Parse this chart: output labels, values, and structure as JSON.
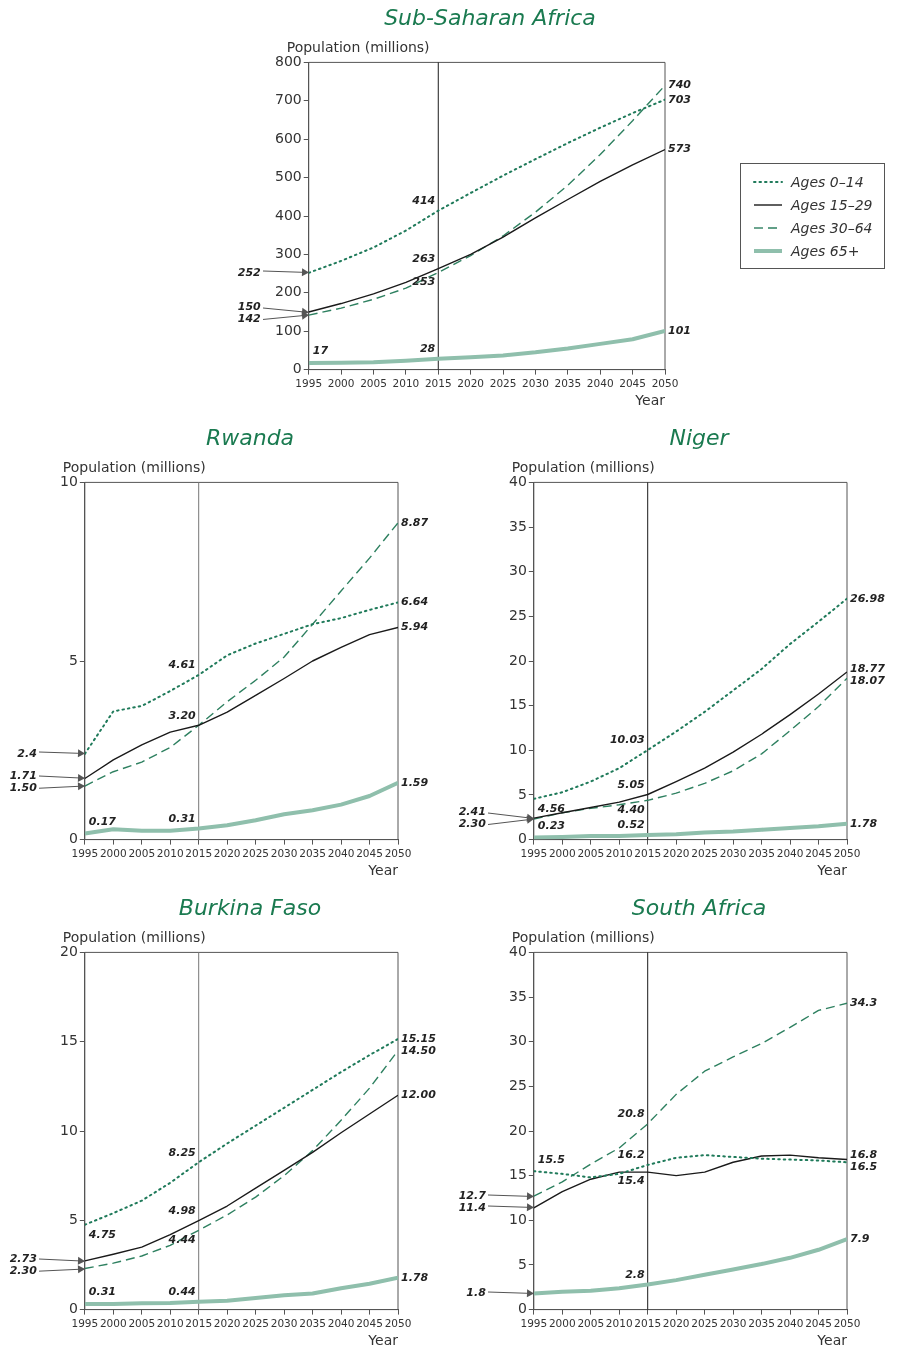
{
  "chart_data": [
    {
      "type": "line",
      "title": "Sub-Saharan Africa",
      "xlabel": "Year",
      "ylabel": "Population (millions)",
      "x": [
        1995,
        2000,
        2005,
        2010,
        2015,
        2020,
        2025,
        2030,
        2035,
        2040,
        2045,
        2050
      ],
      "xlim": [
        1995,
        2050
      ],
      "xticks": [
        1995,
        2000,
        2005,
        2010,
        2015,
        2020,
        2025,
        2030,
        2035,
        2040,
        2045,
        2050
      ],
      "ylim": [
        0,
        800
      ],
      "yticks": [
        0,
        100,
        200,
        300,
        400,
        500,
        600,
        700,
        800
      ],
      "legend": "right",
      "grid": false,
      "series": [
        {
          "name": "Ages 0–14",
          "color": "#1f7a5a",
          "line_style": "dotted",
          "values": [
            252,
            283,
            318,
            362,
            414,
            460,
            505,
            548,
            590,
            630,
            668,
            703
          ]
        },
        {
          "name": "Ages 15–29",
          "color": "#1a1a1a",
          "line_style": "solid",
          "values": [
            150,
            172,
            197,
            227,
            263,
            300,
            345,
            395,
            443,
            490,
            533,
            573
          ]
        },
        {
          "name": "Ages 30–64",
          "color": "#2e8060",
          "line_style": "dashed",
          "values": [
            142,
            160,
            183,
            212,
            253,
            297,
            348,
            410,
            480,
            560,
            648,
            740
          ]
        },
        {
          "name": "Ages 65+",
          "color": "#8fbfac",
          "line_style": "solid",
          "values": [
            17,
            18,
            19,
            23,
            28,
            32,
            37,
            45,
            55,
            67,
            79,
            101
          ]
        }
      ],
      "ref_lines": [
        {
          "axis": "x",
          "value": 2015,
          "color": "#1a1a1a"
        }
      ],
      "annotations": [
        {
          "text": "252",
          "x": 1995,
          "y": 252
        },
        {
          "text": "150",
          "x": 1995,
          "y": 150
        },
        {
          "text": "142",
          "x": 1995,
          "y": 142
        },
        {
          "text": "17",
          "x": 1995,
          "y": 17
        },
        {
          "text": "414",
          "x": 2015,
          "y": 414
        },
        {
          "text": "263",
          "x": 2015,
          "y": 263
        },
        {
          "text": "253",
          "x": 2015,
          "y": 253
        },
        {
          "text": "28",
          "x": 2015,
          "y": 28
        },
        {
          "text": "740",
          "x": 2050,
          "y": 740
        },
        {
          "text": "703",
          "x": 2050,
          "y": 703
        },
        {
          "text": "573",
          "x": 2050,
          "y": 573
        },
        {
          "text": "101",
          "x": 2050,
          "y": 101
        }
      ]
    },
    {
      "type": "line",
      "title": "Rwanda",
      "xlabel": "Year",
      "ylabel": "Population (millions)",
      "x": [
        1995,
        2000,
        2005,
        2010,
        2015,
        2020,
        2025,
        2030,
        2035,
        2040,
        2045,
        2050
      ],
      "xlim": [
        1995,
        2050
      ],
      "xticks": [
        1995,
        2000,
        2005,
        2010,
        2015,
        2020,
        2025,
        2030,
        2035,
        2040,
        2045,
        2050
      ],
      "ylim": [
        0,
        10
      ],
      "yticks": [
        0,
        5,
        10
      ],
      "grid": false,
      "series": [
        {
          "color": "#1f7a5a",
          "line_style": "dotted",
          "values": [
            2.4,
            3.59,
            3.74,
            4.16,
            4.61,
            5.16,
            5.49,
            5.76,
            6.03,
            6.2,
            6.43,
            6.64
          ]
        },
        {
          "color": "#1a1a1a",
          "line_style": "solid",
          "values": [
            1.71,
            2.23,
            2.65,
            3.01,
            3.2,
            3.57,
            4.04,
            4.51,
            5.0,
            5.38,
            5.74,
            5.94
          ]
        },
        {
          "color": "#2e8060",
          "line_style": "dashed",
          "values": [
            1.5,
            1.9,
            2.17,
            2.58,
            3.2,
            3.86,
            4.46,
            5.11,
            6.03,
            6.96,
            7.88,
            8.87
          ]
        },
        {
          "color": "#8fbfac",
          "line_style": "solid",
          "values": [
            0.17,
            0.29,
            0.25,
            0.25,
            0.31,
            0.4,
            0.54,
            0.71,
            0.82,
            0.98,
            1.22,
            1.59
          ]
        }
      ],
      "ref_lines": [
        {
          "axis": "x",
          "value": 2015,
          "color": "#777777"
        }
      ],
      "annotations": [
        {
          "text": "2.4",
          "x": 1995,
          "y": 2.4
        },
        {
          "text": "1.71",
          "x": 1995,
          "y": 1.71
        },
        {
          "text": "1.50",
          "x": 1995,
          "y": 1.5
        },
        {
          "text": "0.17",
          "x": 1995,
          "y": 0.17
        },
        {
          "text": "4.61",
          "x": 2015,
          "y": 4.61
        },
        {
          "text": "3.20",
          "x": 2015,
          "y": 3.2
        },
        {
          "text": "0.31",
          "x": 2015,
          "y": 0.31
        },
        {
          "text": "8.87",
          "x": 2050,
          "y": 8.87
        },
        {
          "text": "6.64",
          "x": 2050,
          "y": 6.64
        },
        {
          "text": "5.94",
          "x": 2050,
          "y": 5.94
        },
        {
          "text": "1.59",
          "x": 2050,
          "y": 1.59
        }
      ]
    },
    {
      "type": "line",
      "title": "Niger",
      "xlabel": "Year",
      "ylabel": "Population (millions)",
      "x": [
        1995,
        2000,
        2005,
        2010,
        2015,
        2020,
        2025,
        2030,
        2035,
        2040,
        2045,
        2050
      ],
      "xlim": [
        1995,
        2050
      ],
      "xticks": [
        1995,
        2000,
        2005,
        2010,
        2015,
        2020,
        2025,
        2030,
        2035,
        2040,
        2045,
        2050
      ],
      "ylim": [
        0,
        40
      ],
      "yticks": [
        0,
        5,
        10,
        15,
        20,
        25,
        30,
        35,
        40
      ],
      "grid": false,
      "series": [
        {
          "color": "#1f7a5a",
          "line_style": "dotted",
          "values": [
            4.56,
            5.3,
            6.5,
            8.0,
            10.03,
            12.1,
            14.3,
            16.7,
            19.1,
            21.9,
            24.4,
            26.98
          ]
        },
        {
          "color": "#1a1a1a",
          "line_style": "solid",
          "values": [
            2.41,
            3.0,
            3.6,
            4.2,
            5.05,
            6.5,
            8.0,
            9.8,
            11.8,
            14.0,
            16.3,
            18.77
          ]
        },
        {
          "color": "#2e8060",
          "line_style": "dashed",
          "values": [
            2.3,
            3.0,
            3.5,
            3.9,
            4.4,
            5.2,
            6.3,
            7.7,
            9.6,
            12.2,
            14.9,
            18.07
          ]
        },
        {
          "color": "#8fbfac",
          "line_style": "solid",
          "values": [
            0.23,
            0.3,
            0.4,
            0.4,
            0.52,
            0.6,
            0.8,
            0.9,
            1.1,
            1.3,
            1.5,
            1.78
          ]
        }
      ],
      "ref_lines": [
        {
          "axis": "x",
          "value": 2015,
          "color": "#1a1a1a"
        }
      ],
      "annotations": [
        {
          "text": "4.56",
          "x": 1995,
          "y": 4.56
        },
        {
          "text": "2.41",
          "x": 1995,
          "y": 2.41
        },
        {
          "text": "2.30",
          "x": 1995,
          "y": 2.3
        },
        {
          "text": "0.23",
          "x": 1995,
          "y": 0.23
        },
        {
          "text": "10.03",
          "x": 2015,
          "y": 10.03
        },
        {
          "text": "5.05",
          "x": 2015,
          "y": 5.05
        },
        {
          "text": "4.40",
          "x": 2015,
          "y": 4.4
        },
        {
          "text": "0.52",
          "x": 2015,
          "y": 0.52
        },
        {
          "text": "26.98",
          "x": 2050,
          "y": 26.98
        },
        {
          "text": "18.77",
          "x": 2050,
          "y": 18.77
        },
        {
          "text": "18.07",
          "x": 2050,
          "y": 18.07
        },
        {
          "text": "1.78",
          "x": 2050,
          "y": 1.78
        }
      ]
    },
    {
      "type": "line",
      "title": "Burkina Faso",
      "xlabel": "Year",
      "ylabel": "Population (millions)",
      "x": [
        1995,
        2000,
        2005,
        2010,
        2015,
        2020,
        2025,
        2030,
        2035,
        2040,
        2045,
        2050
      ],
      "xlim": [
        1995,
        2050
      ],
      "xticks": [
        1995,
        2000,
        2005,
        2010,
        2015,
        2020,
        2025,
        2030,
        2035,
        2040,
        2045,
        2050
      ],
      "ylim": [
        0,
        20
      ],
      "yticks": [
        0,
        5,
        10,
        15,
        20
      ],
      "grid": false,
      "series": [
        {
          "color": "#1f7a5a",
          "line_style": "dotted",
          "values": [
            4.75,
            5.4,
            6.1,
            7.1,
            8.25,
            9.3,
            10.3,
            11.3,
            12.3,
            13.3,
            14.25,
            15.15
          ]
        },
        {
          "color": "#1a1a1a",
          "line_style": "solid",
          "values": [
            2.73,
            3.1,
            3.5,
            4.2,
            4.98,
            5.8,
            6.8,
            7.8,
            8.8,
            9.9,
            10.95,
            12.0
          ]
        },
        {
          "color": "#2e8060",
          "line_style": "dashed",
          "values": [
            2.3,
            2.6,
            3.0,
            3.6,
            4.44,
            5.3,
            6.3,
            7.5,
            8.9,
            10.6,
            12.4,
            14.5
          ]
        },
        {
          "color": "#8fbfac",
          "line_style": "solid",
          "values": [
            0.31,
            0.31,
            0.35,
            0.37,
            0.44,
            0.5,
            0.65,
            0.8,
            0.9,
            1.2,
            1.45,
            1.78
          ]
        }
      ],
      "ref_lines": [
        {
          "axis": "x",
          "value": 2015,
          "color": "#777777"
        }
      ],
      "annotations": [
        {
          "text": "4.75",
          "x": 1995,
          "y": 4.75
        },
        {
          "text": "2.73",
          "x": 1995,
          "y": 2.73
        },
        {
          "text": "2.30",
          "x": 1995,
          "y": 2.3
        },
        {
          "text": "0.31",
          "x": 1995,
          "y": 0.31
        },
        {
          "text": "8.25",
          "x": 2015,
          "y": 8.25
        },
        {
          "text": "4.98",
          "x": 2015,
          "y": 4.98
        },
        {
          "text": "4.44",
          "x": 2015,
          "y": 4.44
        },
        {
          "text": "0.44",
          "x": 2015,
          "y": 0.44
        },
        {
          "text": "15.15",
          "x": 2050,
          "y": 15.15
        },
        {
          "text": "14.50",
          "x": 2050,
          "y": 14.5
        },
        {
          "text": "12.00",
          "x": 2050,
          "y": 12.0
        },
        {
          "text": "1.78",
          "x": 2050,
          "y": 1.78
        }
      ]
    },
    {
      "type": "line",
      "title": "South Africa",
      "xlabel": "Year",
      "ylabel": "Population (millions)",
      "x": [
        1995,
        2000,
        2005,
        2010,
        2015,
        2020,
        2025,
        2030,
        2035,
        2040,
        2045,
        2050
      ],
      "xlim": [
        1995,
        2050
      ],
      "xticks": [
        1995,
        2000,
        2005,
        2010,
        2015,
        2020,
        2025,
        2030,
        2035,
        2040,
        2045,
        2050
      ],
      "ylim": [
        0,
        40
      ],
      "yticks": [
        0,
        5,
        10,
        15,
        20,
        25,
        30,
        35,
        40
      ],
      "grid": false,
      "series": [
        {
          "color": "#1f7a5a",
          "line_style": "dotted",
          "values": [
            15.5,
            15.2,
            14.8,
            15.2,
            16.2,
            17.0,
            17.3,
            17.1,
            16.9,
            16.8,
            16.7,
            16.5
          ]
        },
        {
          "color": "#1a1a1a",
          "line_style": "solid",
          "values": [
            11.4,
            13.2,
            14.6,
            15.4,
            15.4,
            15.0,
            15.4,
            16.5,
            17.2,
            17.3,
            17.0,
            16.8
          ]
        },
        {
          "color": "#2e8060",
          "line_style": "dashed",
          "values": [
            12.7,
            14.3,
            16.3,
            18.1,
            20.8,
            24.1,
            26.7,
            28.3,
            29.8,
            31.6,
            33.5,
            34.3
          ]
        },
        {
          "color": "#8fbfac",
          "line_style": "solid",
          "values": [
            1.8,
            2.0,
            2.1,
            2.4,
            2.8,
            3.3,
            3.9,
            4.5,
            5.1,
            5.8,
            6.7,
            7.9
          ]
        }
      ],
      "ref_lines": [
        {
          "axis": "x",
          "value": 2015,
          "color": "#1a1a1a"
        }
      ],
      "annotations": [
        {
          "text": "15.5",
          "x": 1995,
          "y": 15.5
        },
        {
          "text": "12.7",
          "x": 1995,
          "y": 12.7
        },
        {
          "text": "11.4",
          "x": 1995,
          "y": 11.4
        },
        {
          "text": "1.8",
          "x": 1995,
          "y": 1.8
        },
        {
          "text": "20.8",
          "x": 2015,
          "y": 20.8
        },
        {
          "text": "16.2",
          "x": 2015,
          "y": 16.2
        },
        {
          "text": "15.4",
          "x": 2015,
          "y": 15.4
        },
        {
          "text": "2.8",
          "x": 2015,
          "y": 2.8
        },
        {
          "text": "34.3",
          "x": 2050,
          "y": 34.3
        },
        {
          "text": "16.8",
          "x": 2050,
          "y": 16.8
        },
        {
          "text": "16.5",
          "x": 2050,
          "y": 16.5
        },
        {
          "text": "7.9",
          "x": 2050,
          "y": 7.9
        }
      ]
    }
  ]
}
